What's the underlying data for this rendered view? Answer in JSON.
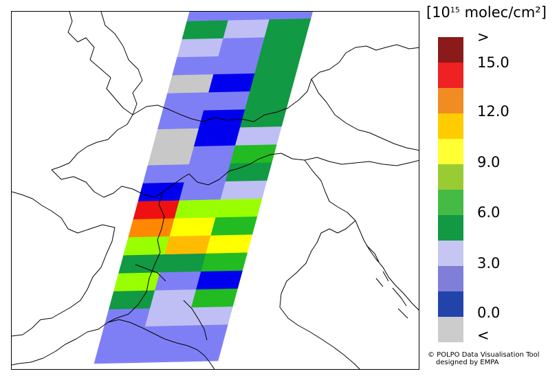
{
  "legend": {
    "title_prefix": "[10",
    "title_exponent": "15",
    "title_suffix": " molec/cm²]",
    "swatches": [
      {
        "color": "#8b1a1a"
      },
      {
        "color": "#ee2222"
      },
      {
        "color": "#f08c22"
      },
      {
        "color": "#ffcc00"
      },
      {
        "color": "#ffff33"
      },
      {
        "color": "#99cc33"
      },
      {
        "color": "#44bb44"
      },
      {
        "color": "#119944"
      },
      {
        "color": "#c6c6f2"
      },
      {
        "color": "#7f7fd8"
      },
      {
        "color": "#2244aa"
      },
      {
        "color": "#cccccc"
      }
    ],
    "labels": [
      ">",
      "15.0",
      "12.0",
      "9.0",
      "6.0",
      "3.0",
      "0.0",
      "<"
    ]
  },
  "credits": {
    "line1": "© POLPO Data Visualisation Tool",
    "line2": "designed by EMPA"
  },
  "palette": {
    "gray": "#c8c8c8",
    "dark_blue": "#0000ee",
    "mid_blue": "#7f7ff5",
    "light_blue": "#bfbff5",
    "dark_green": "#119944",
    "green": "#22bb22",
    "light_green": "#99ff00",
    "yellow": "#ffff00",
    "amber": "#ffbb00",
    "orange": "#ff8800",
    "red": "#ee1111"
  },
  "swath_rows": [
    [
      "mid_blue",
      "mid_blue",
      "mid_blue"
    ],
    [
      "dark_green",
      "light_blue",
      "dark_green"
    ],
    [
      "light_blue",
      "mid_blue",
      "dark_green"
    ],
    [
      "mid_blue",
      "mid_blue",
      "dark_green"
    ],
    [
      "gray",
      "dark_blue",
      "dark_green"
    ],
    [
      "mid_blue",
      "mid_blue",
      "dark_green"
    ],
    [
      "mid_blue",
      "dark_blue",
      "dark_green"
    ],
    [
      "gray",
      "dark_blue",
      "light_blue"
    ],
    [
      "gray",
      "mid_blue",
      "green"
    ],
    [
      "mid_blue",
      "mid_blue",
      "dark_green"
    ],
    [
      "dark_blue",
      "mid_blue",
      "light_blue"
    ],
    [
      "red",
      "light_green",
      "light_green"
    ],
    [
      "orange",
      "yellow",
      "green"
    ],
    [
      "light_green",
      "amber",
      "yellow"
    ],
    [
      "dark_green",
      "dark_green",
      "green"
    ],
    [
      "light_green",
      "mid_blue",
      "dark_blue"
    ],
    [
      "dark_green",
      "light_blue",
      "green"
    ],
    [
      "mid_blue",
      "light_blue",
      "light_blue"
    ],
    [
      "mid_blue",
      "mid_blue",
      "mid_blue"
    ],
    [
      "mid_blue",
      "mid_blue",
      "mid_blue"
    ]
  ]
}
